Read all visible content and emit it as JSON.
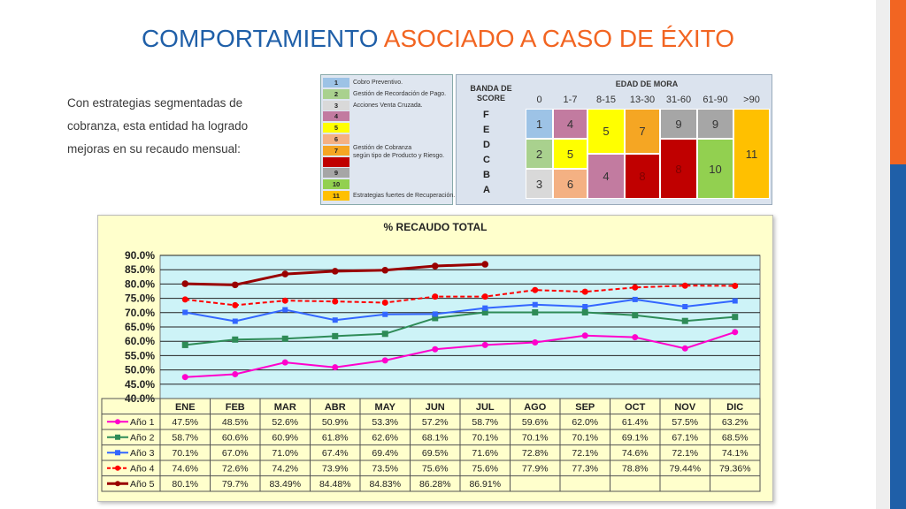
{
  "slide": {
    "title_part1": "COMPORTAMIENTO",
    "title_part2": "ASOCIADO A CASO DE ÉXITO",
    "body_text": "Con estrategias segmentadas de cobranza, esta entidad ha logrado mejoras en su recaudo mensual:"
  },
  "legend": {
    "items": [
      {
        "code": "1",
        "color": "#9dc3e6"
      },
      {
        "code": "2",
        "color": "#a9d18e"
      },
      {
        "code": "3",
        "color": "#d9d9d9"
      },
      {
        "code": "4",
        "color": "#c27ba0"
      },
      {
        "code": "5",
        "color": "#ffff00"
      },
      {
        "code": "6",
        "color": "#f4b183"
      },
      {
        "code": "7",
        "color": "#f5a623"
      },
      {
        "code": "8",
        "color": "#c00000"
      },
      {
        "code": "9",
        "color": "#a6a6a6"
      },
      {
        "code": "10",
        "color": "#92d050"
      },
      {
        "code": "11",
        "color": "#ffc000"
      }
    ],
    "labels": [
      "Cobro Preventivo.",
      "Gestión de Recordación de Pago.",
      "Acciones Venta Cruzada.",
      "Gestión de Cobranza",
      "según tipo de Producto y Riesgo.",
      "Estrategias fuertes de Recuperación."
    ]
  },
  "matrix": {
    "row_header": "BANDA DE SCORE",
    "col_header": "EDAD DE MORA",
    "columns": [
      "0",
      "1-7",
      "8-15",
      "13-30",
      "31-60",
      "61-90",
      ">90"
    ],
    "rows": [
      "F",
      "E",
      "D",
      "C",
      "B",
      "A"
    ]
  },
  "chart_data": {
    "type": "line",
    "title": "% RECAUDO TOTAL",
    "categories": [
      "ENE",
      "FEB",
      "MAR",
      "ABR",
      "MAY",
      "JUN",
      "JUL",
      "AGO",
      "SEP",
      "OCT",
      "NOV",
      "DIC"
    ],
    "ylim": [
      40,
      90
    ],
    "yticks": [
      "90.0%",
      "85.0%",
      "80.0%",
      "75.0%",
      "70.0%",
      "65.0%",
      "60.0%",
      "55.0%",
      "50.0%",
      "45.0%",
      "40.0%"
    ],
    "legend_placement": "bottom data table",
    "series": [
      {
        "name": "Año 1",
        "color": "#ff00cc",
        "values": [
          47.5,
          48.5,
          52.6,
          50.9,
          53.3,
          57.2,
          58.7,
          59.6,
          62.0,
          61.4,
          57.5,
          63.2
        ],
        "labels": [
          "47.5%",
          "48.5%",
          "52.6%",
          "50.9%",
          "53.3%",
          "57.2%",
          "58.7%",
          "59.6%",
          "62.0%",
          "61.4%",
          "57.5%",
          "63.2%"
        ]
      },
      {
        "name": "Año 2",
        "color": "#2e8b57",
        "values": [
          58.7,
          60.6,
          60.9,
          61.8,
          62.6,
          68.1,
          70.1,
          70.1,
          70.1,
          69.1,
          67.1,
          68.5
        ],
        "labels": [
          "58.7%",
          "60.6%",
          "60.9%",
          "61.8%",
          "62.6%",
          "68.1%",
          "70.1%",
          "70.1%",
          "70.1%",
          "69.1%",
          "67.1%",
          "68.5%"
        ]
      },
      {
        "name": "Año 3",
        "color": "#3366ff",
        "values": [
          70.1,
          67.0,
          71.0,
          67.4,
          69.4,
          69.5,
          71.6,
          72.8,
          72.1,
          74.6,
          72.1,
          74.1
        ],
        "labels": [
          "70.1%",
          "67.0%",
          "71.0%",
          "67.4%",
          "69.4%",
          "69.5%",
          "71.6%",
          "72.8%",
          "72.1%",
          "74.6%",
          "72.1%",
          "74.1%"
        ]
      },
      {
        "name": "Año 4",
        "color": "#ff0000",
        "values": [
          74.6,
          72.6,
          74.2,
          73.9,
          73.5,
          75.6,
          75.6,
          77.9,
          77.3,
          78.8,
          79.44,
          79.36
        ],
        "labels": [
          "74.6%",
          "72.6%",
          "74.2%",
          "73.9%",
          "73.5%",
          "75.6%",
          "75.6%",
          "77.9%",
          "77.3%",
          "78.8%",
          "79.44%",
          "79.36%"
        ]
      },
      {
        "name": "Año 5",
        "color": "#990000",
        "values": [
          80.1,
          79.7,
          83.49,
          84.48,
          84.83,
          86.28,
          86.91,
          null,
          null,
          null,
          null,
          null
        ],
        "labels": [
          "80.1%",
          "79.7%",
          "83.49%",
          "84.48%",
          "84.83%",
          "86.28%",
          "86.91%",
          "",
          "",
          "",
          "",
          ""
        ]
      }
    ]
  }
}
